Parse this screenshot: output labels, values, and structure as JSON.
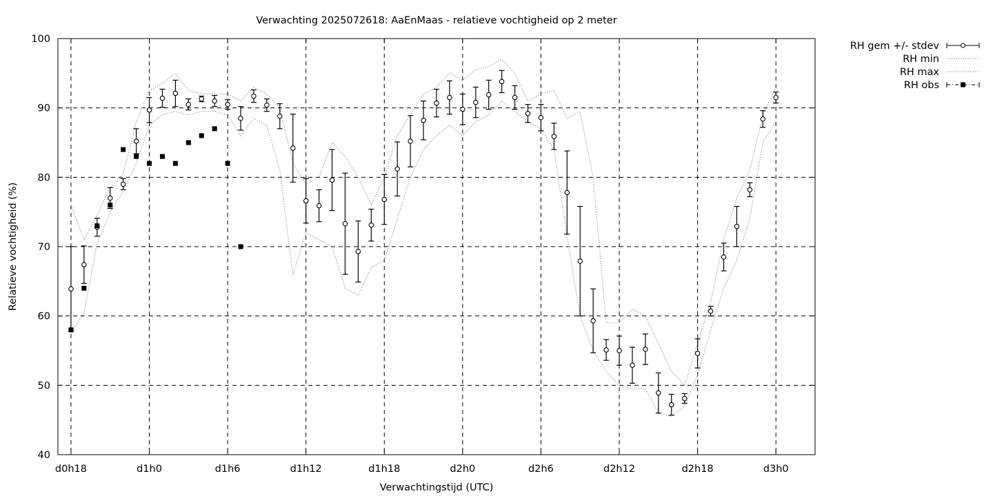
{
  "chart_data": {
    "type": "line",
    "title": "Verwachting 2025072618: AaEnMaas - relatieve vochtigheid op 2 meter",
    "xlabel": "Verwachtingstijd (UTC)",
    "ylabel": "Relatieve vochtigheid (%)",
    "ylim": [
      40,
      100
    ],
    "yticks": [
      40,
      50,
      60,
      70,
      80,
      90,
      100
    ],
    "xlim": [
      -1,
      57
    ],
    "xticks": [
      {
        "x": 0,
        "label": "d0h18"
      },
      {
        "x": 6,
        "label": "d1h0"
      },
      {
        "x": 12,
        "label": "d1h6"
      },
      {
        "x": 18,
        "label": "d1h12"
      },
      {
        "x": 24,
        "label": "d1h18"
      },
      {
        "x": 30,
        "label": "d2h0"
      },
      {
        "x": 36,
        "label": "d2h6"
      },
      {
        "x": 42,
        "label": "d2h12"
      },
      {
        "x": 48,
        "label": "d2h18"
      },
      {
        "x": 54,
        "label": "d3h0"
      }
    ],
    "grid": true,
    "legend_position": "outside top-right",
    "series": [
      {
        "name": "RH gem +/- stdev",
        "style": "errorbars-circle",
        "x": [
          0,
          1,
          2,
          3,
          4,
          5,
          6,
          7,
          8,
          9,
          10,
          11,
          12,
          13,
          14,
          15,
          16,
          17,
          18,
          19,
          20,
          21,
          22,
          23,
          24,
          25,
          26,
          27,
          28,
          29,
          30,
          31,
          32,
          33,
          34,
          35,
          36,
          37,
          38,
          39,
          40,
          41,
          42,
          43,
          44,
          45,
          46,
          47,
          48,
          49,
          50,
          51,
          52,
          53,
          54
        ],
        "y": [
          63.9,
          67.4,
          72.8,
          77.0,
          79.0,
          85.2,
          89.7,
          91.4,
          92.1,
          90.5,
          91.3,
          91.0,
          90.5,
          88.5,
          91.7,
          90.4,
          88.8,
          84.2,
          76.6,
          75.9,
          79.6,
          73.3,
          69.3,
          73.1,
          76.8,
          81.2,
          85.2,
          88.2,
          90.7,
          91.5,
          89.8,
          90.8,
          91.9,
          93.8,
          91.5,
          89.2,
          88.6,
          85.9,
          77.8,
          67.9,
          59.3,
          55.1,
          55.0,
          52.9,
          55.2,
          48.9,
          47.2,
          48.1,
          54.6,
          60.7,
          68.5,
          72.9,
          78.2,
          88.4,
          91.5
        ],
        "err": [
          6.1,
          2.7,
          1.3,
          1.5,
          0.8,
          1.8,
          1.8,
          1.3,
          1.9,
          0.8,
          0.4,
          0.8,
          0.7,
          1.7,
          0.9,
          0.9,
          1.8,
          4.9,
          3.2,
          2.3,
          4.4,
          7.3,
          4.4,
          2.3,
          3.6,
          3.9,
          3.7,
          2.8,
          2.0,
          2.4,
          2.2,
          2.2,
          2.1,
          1.6,
          1.7,
          1.3,
          1.9,
          1.9,
          6.0,
          7.9,
          4.6,
          1.5,
          2.1,
          2.6,
          2.2,
          2.9,
          1.5,
          0.7,
          2.1,
          0.7,
          2.0,
          2.9,
          1.0,
          1.2,
          0.8
        ]
      },
      {
        "name": "RH min",
        "style": "dotted",
        "x": [
          0,
          1,
          2,
          3,
          4,
          5,
          6,
          7,
          8,
          9,
          10,
          11,
          12,
          13,
          14,
          15,
          16,
          17,
          18,
          19,
          20,
          21,
          22,
          23,
          24,
          25,
          26,
          27,
          28,
          29,
          30,
          31,
          32,
          33,
          34,
          35,
          36,
          37,
          38,
          39,
          40,
          41,
          42,
          43,
          44,
          45,
          46,
          47,
          48,
          49,
          50,
          51,
          52,
          53,
          54
        ],
        "y": [
          57.5,
          60.5,
          70.5,
          75,
          78,
          82,
          87.5,
          89,
          89.5,
          89,
          89.5,
          89.5,
          89,
          86,
          88.5,
          87.5,
          81,
          66,
          72,
          71,
          70,
          64,
          63,
          67,
          68,
          74,
          80,
          84,
          86,
          87.5,
          86,
          88,
          89,
          91,
          89.5,
          88,
          87,
          84,
          71.5,
          60,
          55,
          52,
          50,
          49.5,
          49.5,
          46,
          45.5,
          47,
          51.5,
          58,
          64,
          68,
          74,
          85,
          88
        ]
      },
      {
        "name": "RH max",
        "style": "dotted",
        "x": [
          0,
          1,
          2,
          3,
          4,
          5,
          6,
          7,
          8,
          9,
          10,
          11,
          12,
          13,
          14,
          15,
          16,
          17,
          18,
          19,
          20,
          21,
          22,
          23,
          24,
          25,
          26,
          27,
          28,
          29,
          30,
          31,
          32,
          33,
          34,
          35,
          36,
          37,
          38,
          39,
          40,
          41,
          42,
          43,
          44,
          45,
          46,
          47,
          48,
          49,
          50,
          51,
          52,
          53,
          54
        ],
        "y": [
          76,
          71,
          74.5,
          78.5,
          80.5,
          88,
          92.5,
          93.5,
          95,
          92.5,
          92,
          92,
          92,
          91,
          93,
          92,
          90,
          82,
          79,
          80,
          85,
          83,
          80,
          76,
          80,
          86,
          89,
          92,
          93,
          95,
          94,
          95.5,
          96,
          97,
          95,
          91,
          92,
          92.5,
          88.5,
          89.5,
          80,
          59,
          59,
          61,
          60,
          56,
          52,
          50,
          56,
          62,
          71,
          77,
          81,
          89,
          93
        ]
      },
      {
        "name": "RH obs",
        "style": "squares",
        "x": [
          0,
          1,
          2,
          3,
          4,
          5,
          6,
          7,
          8,
          9,
          10,
          11,
          12,
          13
        ],
        "y": [
          58,
          64,
          73,
          76,
          84,
          83,
          82,
          83,
          82,
          85,
          86,
          87,
          82,
          70
        ]
      }
    ]
  }
}
